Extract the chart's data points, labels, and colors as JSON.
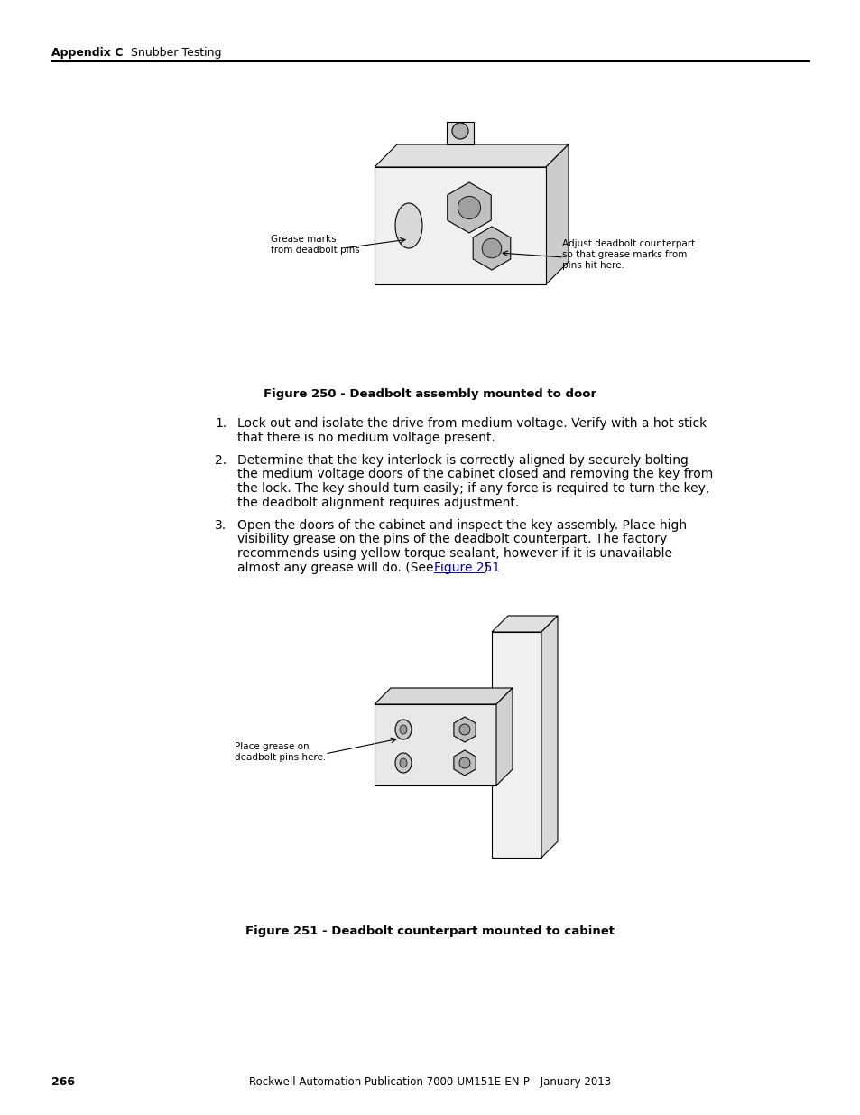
{
  "page_number": "266",
  "footer_text": "Rockwell Automation Publication 7000-UM151E-EN-P - January 2013",
  "header_bold": "Appendix C",
  "header_normal": "Snubber Testing",
  "figure250_caption": "Figure 250 - Deadbolt assembly mounted to door",
  "figure251_caption": "Figure 251 - Deadbolt counterpart mounted to cabinet",
  "step1": "Lock out and isolate the drive from medium voltage. Verify with a hot stick\nthat there is no medium voltage present.",
  "step2": "Determine that the key interlock is correctly aligned by securely bolting\nthe medium voltage doors of the cabinet closed and removing the key from\nthe lock. The key should turn easily; if any force is required to turn the key,\nthe deadbolt alignment requires adjustment.",
  "step3_line1": "Open the doors of the cabinet and inspect the key assembly. Place high",
  "step3_line2": "visibility grease on the pins of the deadbolt counterpart. The factory",
  "step3_line3": "recommends using yellow torque sealant, however if it is unavailable",
  "step3_line4_pre": "almost any grease will do. (See ",
  "step3_link": "Figure 251",
  "step3_line4_post": ")",
  "annotation1_line1": "Grease marks",
  "annotation1_line2": "from deadbolt pins",
  "annotation2_line1": "Adjust deadbolt counterpart",
  "annotation2_line2": "so that grease marks from",
  "annotation2_line3": "pins hit here.",
  "annotation3_line1": "Place grease on",
  "annotation3_line2": "deadbolt pins here.",
  "bg_color": "#ffffff",
  "text_color": "#000000",
  "link_color": "#0000cc"
}
